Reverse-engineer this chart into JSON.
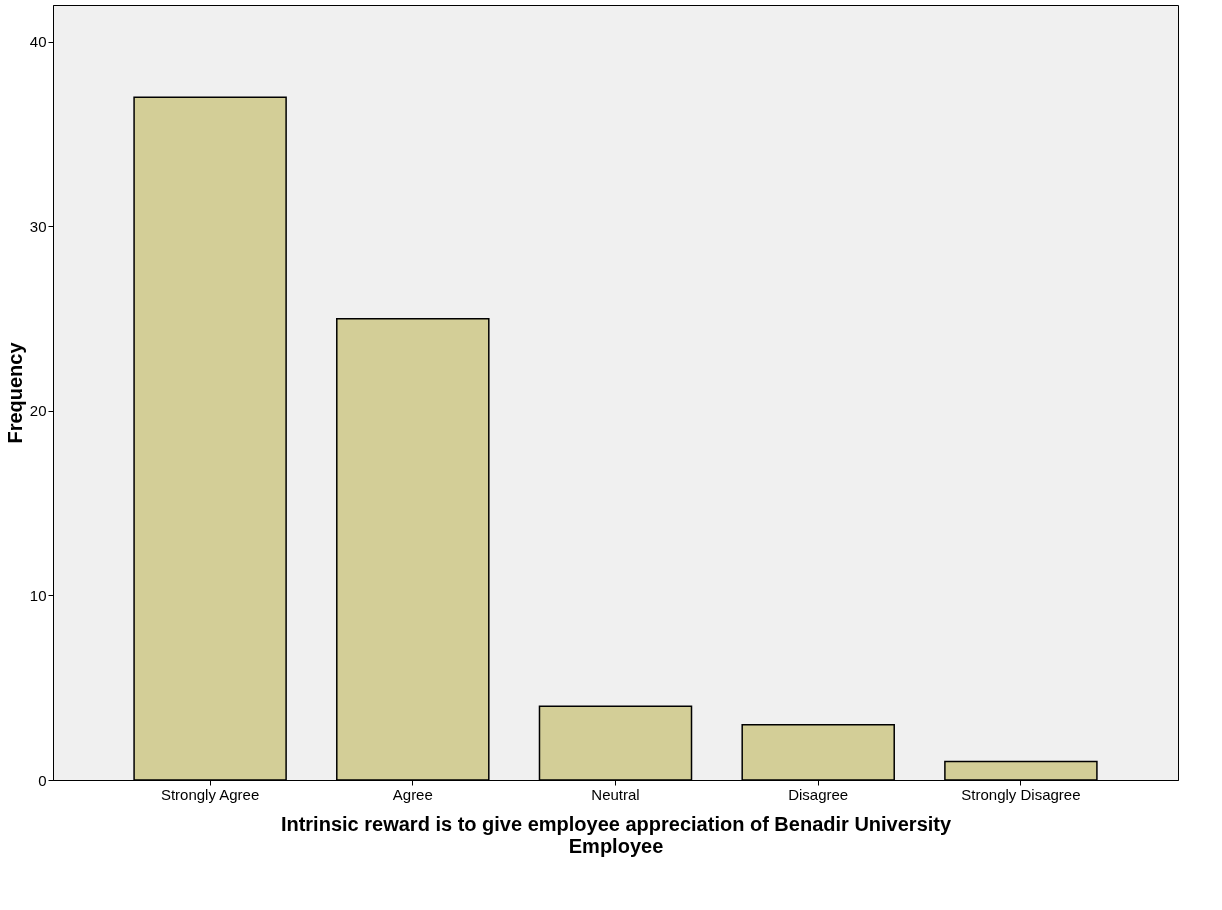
{
  "chart_data": {
    "type": "bar",
    "xlabel": "Intrinsic reward is to give employee appreciation of Benadir University Employee",
    "ylabel": "Frequency",
    "categories": [
      "Strongly Agree",
      "Agree",
      "Neutral",
      "Disagree",
      "Strongly Disagree"
    ],
    "values": [
      37,
      25,
      4,
      3,
      1
    ],
    "color": "#d3ce97",
    "ylim": [
      0,
      42
    ],
    "yticks": [
      0,
      10,
      20,
      30,
      40
    ],
    "grid": false
  }
}
